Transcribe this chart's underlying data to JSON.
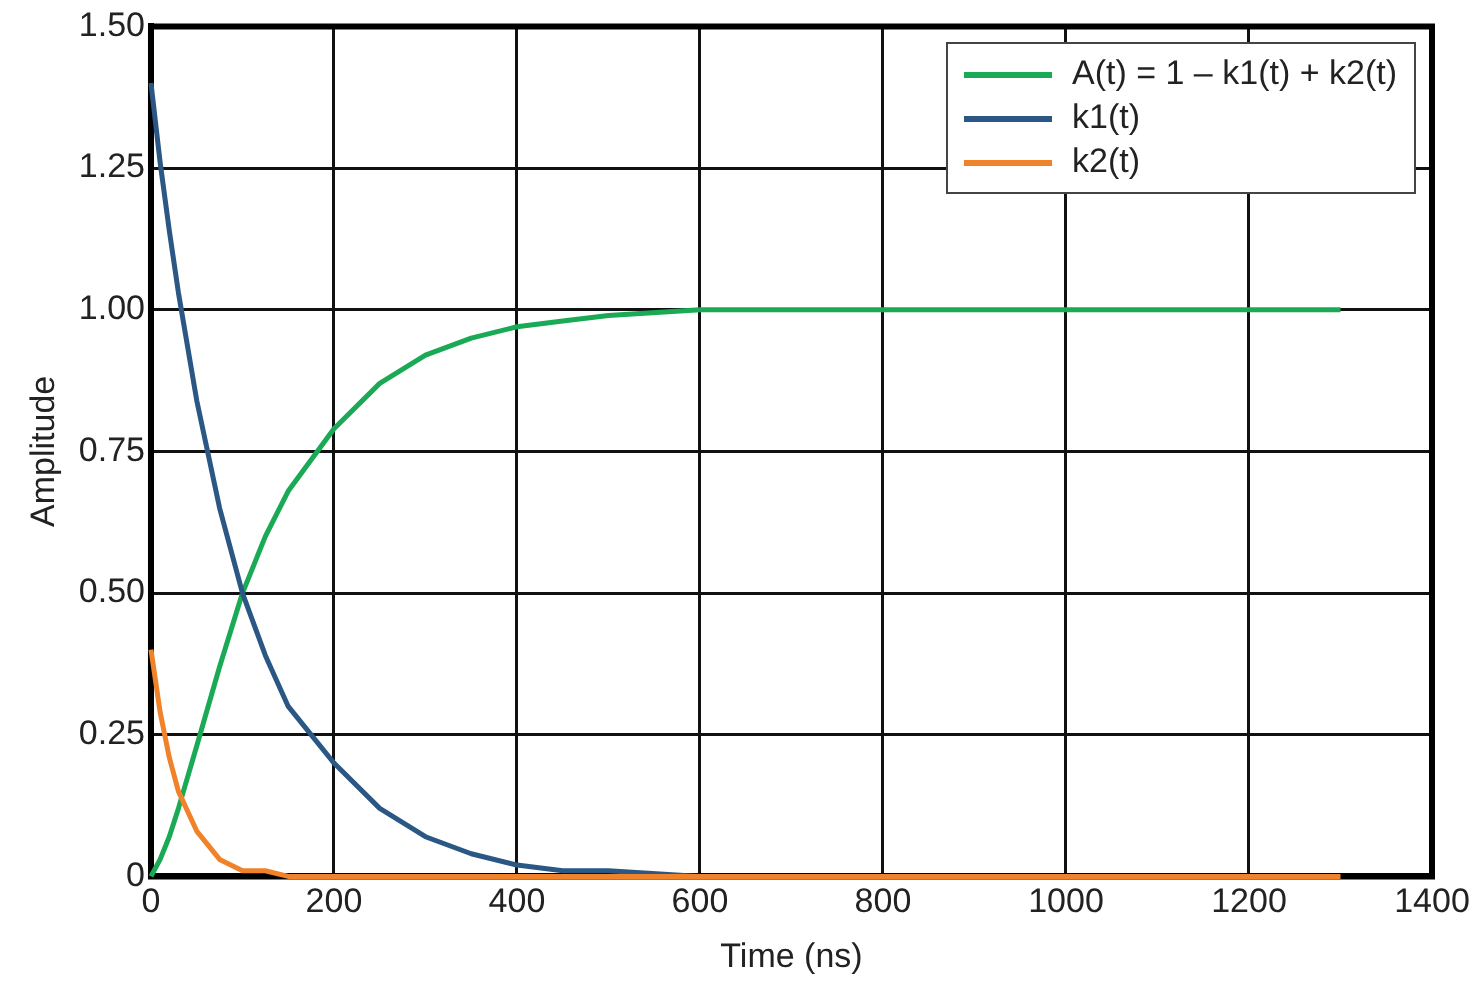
{
  "chart_data": {
    "type": "line",
    "xlabel": "Time (ns)",
    "ylabel": "Amplitude",
    "xlim": [
      0,
      1400
    ],
    "xticks": [
      0,
      200,
      400,
      600,
      800,
      1000,
      1200,
      1400
    ],
    "ylim": [
      0,
      1.5
    ],
    "yticks": [
      {
        "value": 0,
        "label": "0"
      },
      {
        "value": 0.25,
        "label": "0.25"
      },
      {
        "value": 0.5,
        "label": "0.50"
      },
      {
        "value": 0.75,
        "label": "0.75"
      },
      {
        "value": 1,
        "label": "1.00"
      },
      {
        "value": 1.25,
        "label": "1.25"
      },
      {
        "value": 1.5,
        "label": "1.50"
      }
    ],
    "grid": true,
    "legend": "top right",
    "marker": "none",
    "line_style": "solid",
    "x": [
      0,
      10,
      20,
      30,
      50,
      75,
      100,
      125,
      150,
      200,
      250,
      300,
      350,
      400,
      450,
      500,
      600,
      700,
      800,
      1000,
      1300
    ],
    "series": [
      {
        "name": "A(t) = 1 – k1(t) + k2(t)",
        "color": "#1aa955",
        "values": [
          0,
          0.03,
          0.07,
          0.12,
          0.23,
          0.37,
          0.5,
          0.6,
          0.68,
          0.79,
          0.87,
          0.92,
          0.95,
          0.97,
          0.98,
          0.99,
          1.0,
          1.0,
          1.0,
          1.0,
          1.0
        ]
      },
      {
        "name": "k1(t)",
        "color": "#2a5783",
        "values": [
          1.4,
          1.26,
          1.14,
          1.03,
          0.84,
          0.65,
          0.5,
          0.39,
          0.3,
          0.2,
          0.12,
          0.07,
          0.04,
          0.02,
          0.01,
          0.01,
          0,
          0,
          null,
          null,
          null
        ]
      },
      {
        "name": "k2(t)",
        "color": "#f0822a",
        "values": [
          0.4,
          0.29,
          0.21,
          0.15,
          0.08,
          0.03,
          0.01,
          0.01,
          0,
          0,
          0,
          0,
          0,
          0,
          0,
          0,
          0,
          0,
          0,
          0,
          0
        ]
      }
    ]
  }
}
